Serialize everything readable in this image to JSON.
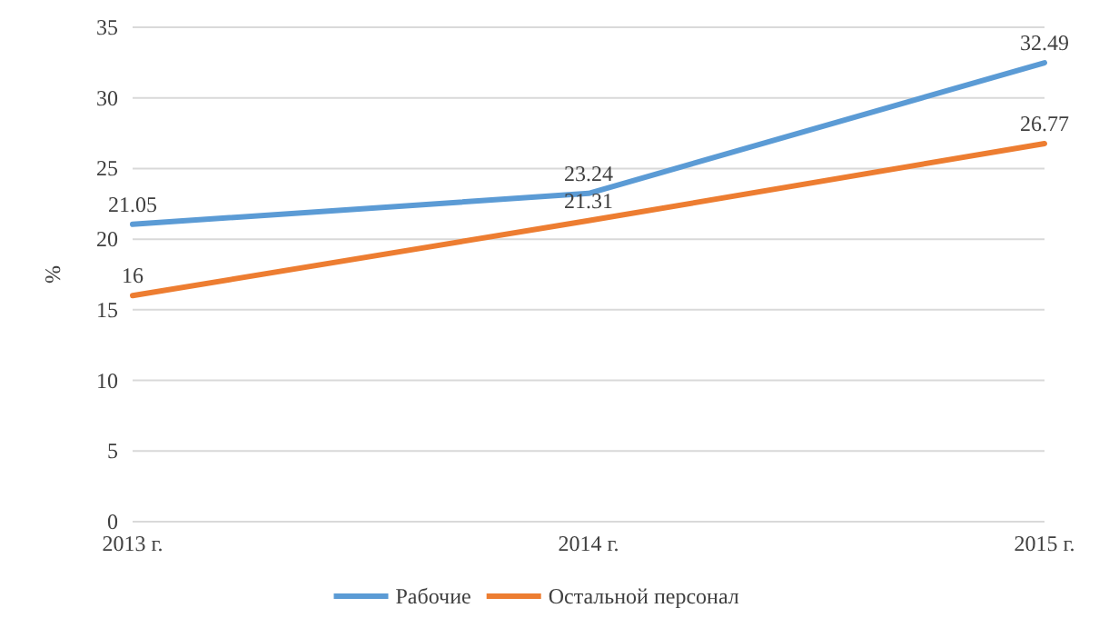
{
  "chart_data": {
    "type": "line",
    "ylabel": "%",
    "categories": [
      "2013 г.",
      "2014 г.",
      "2015 г."
    ],
    "series": [
      {
        "name": "Рабочие",
        "color": "#5b9bd5",
        "values": [
          21.05,
          23.24,
          32.49
        ]
      },
      {
        "name": "Остальной персонал",
        "color": "#ed7d31",
        "values": [
          16,
          21.31,
          26.77
        ]
      }
    ],
    "ylim": [
      0,
      35
    ],
    "yticks": [
      0,
      5,
      10,
      15,
      20,
      25,
      30,
      35
    ],
    "grid": "y",
    "legend": "bottom",
    "data_labels": true,
    "marker": "none",
    "line_style": "solid"
  }
}
